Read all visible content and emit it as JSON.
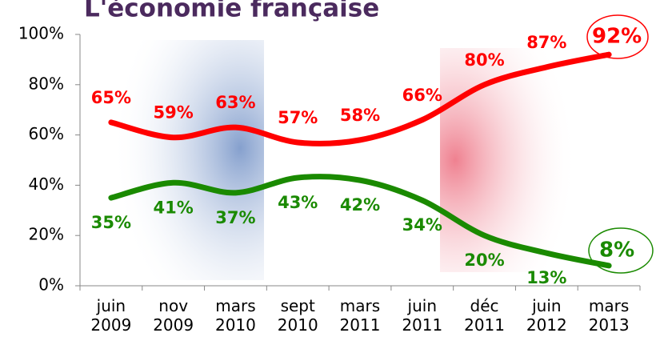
{
  "chart_data": {
    "type": "line",
    "title": "L'économie française",
    "categories": [
      "juin 2009",
      "nov 2009",
      "mars 2010",
      "sept 2010",
      "mars 2011",
      "juin 2011",
      "déc 2011",
      "juin 2012",
      "mars 2013"
    ],
    "series": [
      {
        "color": "#ff0000",
        "values": [
          65,
          59,
          63,
          57,
          58,
          66,
          80,
          87,
          92
        ],
        "value_labels": [
          "65%",
          "59%",
          "63%",
          "57%",
          "58%",
          "66%",
          "80%",
          "87%",
          "92%"
        ]
      },
      {
        "color": "#1a8a00",
        "values": [
          35,
          41,
          37,
          43,
          42,
          34,
          20,
          13,
          8
        ],
        "value_labels": [
          "35%",
          "41%",
          "37%",
          "43%",
          "42%",
          "34%",
          "20%",
          "13%",
          "8%"
        ]
      }
    ],
    "ylim": [
      0,
      100
    ],
    "yticks": [
      {
        "value": 0,
        "label": "0%"
      },
      {
        "value": 20,
        "label": "20%"
      },
      {
        "value": 40,
        "label": "40%"
      },
      {
        "value": 60,
        "label": "60%"
      },
      {
        "value": 80,
        "label": "80%"
      },
      {
        "value": 100,
        "label": "100%"
      }
    ]
  }
}
